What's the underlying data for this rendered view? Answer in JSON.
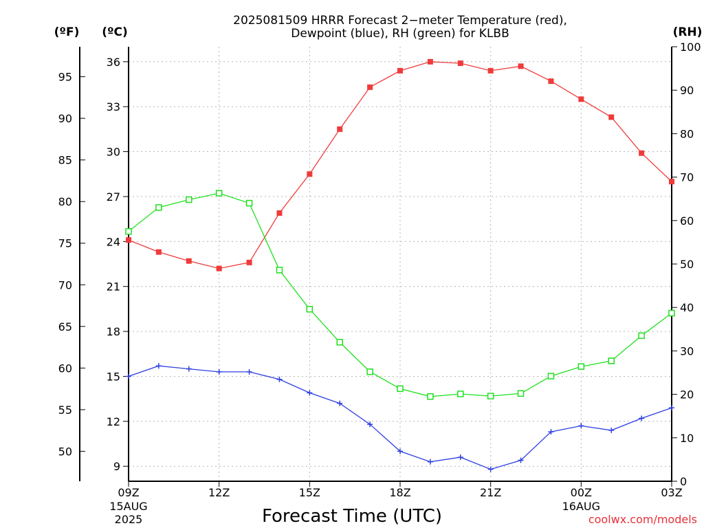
{
  "title_line1": "2025081509 HRRR Forecast 2−meter Temperature (red),",
  "title_line2": "Dewpoint (blue), RH (green) for KLBB",
  "unit_f": "(ºF)",
  "unit_c": "(ºC)",
  "unit_rh": "(RH)",
  "xlabel": "Forecast Time (UTC)",
  "credit": "coolwx.com/models",
  "chart_data": {
    "type": "line",
    "x": [
      9,
      10,
      11,
      12,
      13,
      14,
      15,
      16,
      17,
      18,
      19,
      20,
      21,
      22,
      23,
      24,
      25,
      26,
      27
    ],
    "x_tick_positions": [
      9,
      12,
      15,
      18,
      21,
      24,
      27
    ],
    "x_tick_labels": [
      "09Z",
      "12Z",
      "15Z",
      "18Z",
      "21Z",
      "00Z",
      "03Z"
    ],
    "x_date_labels": [
      {
        "at": 9,
        "lines": [
          "15AUG",
          "2025"
        ]
      },
      {
        "at": 24,
        "lines": [
          "16AUG"
        ]
      }
    ],
    "xlim": [
      9,
      27
    ],
    "ylim_c": [
      8,
      37
    ],
    "yticks_c": [
      9,
      12,
      15,
      18,
      21,
      24,
      27,
      30,
      33,
      36
    ],
    "yticks_f": [
      50,
      55,
      60,
      65,
      70,
      75,
      80,
      85,
      90,
      95
    ],
    "ylim_rh": [
      0,
      100
    ],
    "yticks_rh": [
      0,
      10,
      20,
      30,
      40,
      50,
      60,
      70,
      80,
      90,
      100
    ],
    "grid": true,
    "series": [
      {
        "name": "Temperature",
        "axis": "c",
        "color": "#ef3b3b",
        "marker": "filled-square",
        "values": [
          24.1,
          23.3,
          22.7,
          22.2,
          22.6,
          25.9,
          28.5,
          31.5,
          34.3,
          35.4,
          36.0,
          35.9,
          35.4,
          35.7,
          34.7,
          33.5,
          32.3,
          29.9,
          28.0
        ]
      },
      {
        "name": "Dewpoint",
        "axis": "c",
        "color": "#2d3fe0",
        "marker": "plus",
        "values": [
          15.0,
          15.7,
          15.5,
          15.3,
          15.3,
          14.8,
          13.9,
          13.2,
          11.8,
          10.0,
          9.3,
          9.6,
          8.8,
          9.4,
          11.3,
          11.7,
          11.4,
          12.2,
          12.9
        ]
      },
      {
        "name": "RH",
        "axis": "rh",
        "color": "#1ee01e",
        "marker": "open-square",
        "values": [
          57.5,
          63.0,
          64.8,
          66.3,
          64.0,
          48.6,
          39.6,
          32.0,
          25.2,
          21.3,
          19.5,
          20.1,
          19.6,
          20.2,
          24.2,
          26.4,
          27.7,
          33.5,
          38.7
        ]
      }
    ]
  }
}
